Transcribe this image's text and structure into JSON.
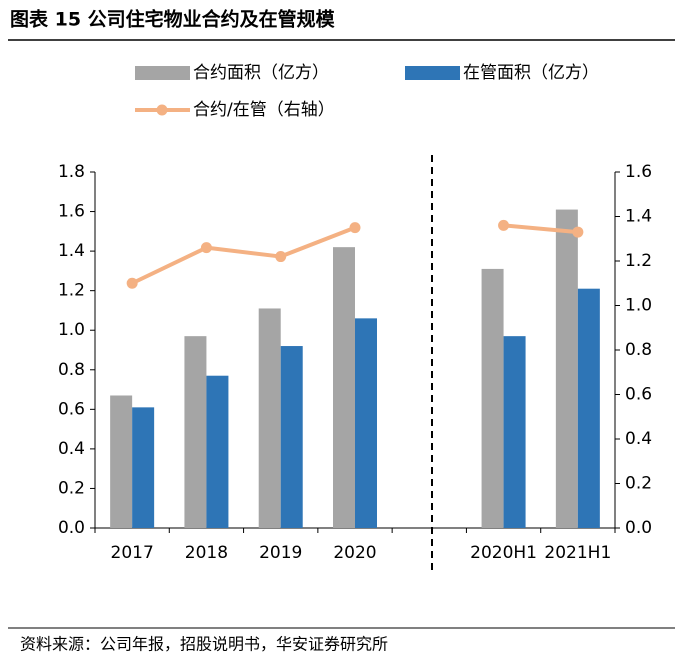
{
  "header": {
    "title": "图表 15 公司住宅物业合约及在管规模"
  },
  "chart_data": {
    "type": "bar-line",
    "categories": [
      "2017",
      "2018",
      "2019",
      "2020",
      null,
      "2020H1",
      "2021H1"
    ],
    "series": [
      {
        "name": "合约面积（亿方）",
        "type": "bar",
        "color": "#a5a5a5",
        "values": [
          0.67,
          0.97,
          1.11,
          1.42,
          null,
          1.31,
          1.61
        ]
      },
      {
        "name": "在管面积（亿方）",
        "type": "bar",
        "color": "#2e75b6",
        "values": [
          0.61,
          0.77,
          0.92,
          1.06,
          null,
          0.97,
          1.21
        ]
      },
      {
        "name": "合约/在管（右轴）",
        "type": "line",
        "axis": "y2",
        "color": "#f4b183",
        "values": [
          1.1,
          1.26,
          1.22,
          1.35,
          null,
          1.36,
          1.33
        ]
      }
    ],
    "ylim": [
      0,
      1.8
    ],
    "yticks": [
      {
        "value": 0,
        "label": "0.0"
      },
      0.2,
      0.4,
      0.6,
      0.8,
      {
        "value": 1,
        "label": "1.0"
      },
      1.2,
      1.4,
      1.6,
      1.8
    ],
    "y2lim": [
      0,
      1.6
    ],
    "y2ticks": [
      {
        "value": 0,
        "label": "0.0"
      },
      0.2,
      0.4,
      0.6,
      0.8,
      {
        "value": 1,
        "label": "1.0"
      },
      1.2,
      1.4,
      1.6
    ]
  },
  "footer": {
    "source": "资料来源：公司年报，招股说明书，华安证券研究所"
  }
}
